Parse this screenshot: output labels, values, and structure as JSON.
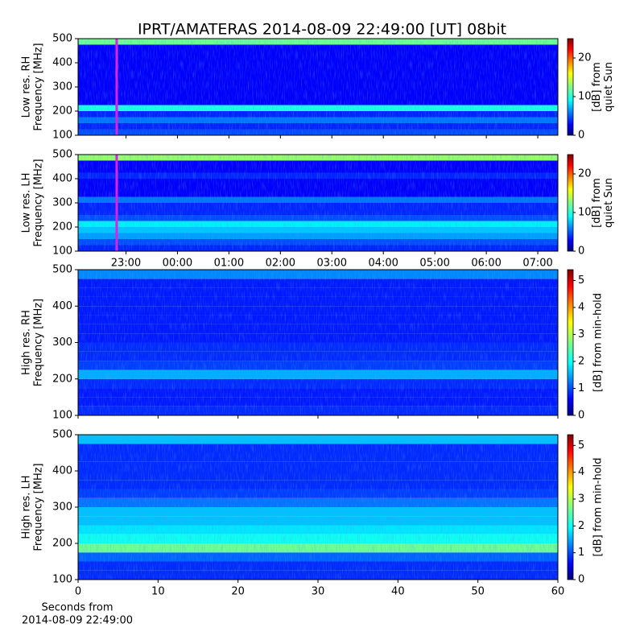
{
  "chart_data": [
    {
      "type": "heatmap",
      "title": "IPRT/AMATERAS 2014-08-09 22:49:00 [UT]   08bit",
      "y_label": [
        "Low res. RH",
        "Frequency [MHz]"
      ],
      "ylim": [
        100,
        500
      ],
      "yticks": [
        100,
        200,
        300,
        400,
        500
      ],
      "xlim": [
        22.07,
        31.39
      ],
      "xticks": [
        23,
        24,
        25,
        26,
        27,
        28,
        29,
        30,
        31
      ],
      "frequency_edges": [
        100,
        125,
        150,
        175,
        200,
        225,
        250,
        275,
        300,
        325,
        350,
        375,
        400,
        425,
        450,
        475,
        500
      ],
      "values": [
        5,
        4,
        6,
        4,
        10,
        3,
        3,
        3,
        3,
        3,
        3,
        3,
        3,
        3,
        3,
        12
      ],
      "clim": [
        0,
        25
      ],
      "cticks": [
        0,
        10,
        20
      ],
      "colorbar_label": [
        "[dB] from",
        "quiet Sun"
      ],
      "marker": {
        "x": 22.82,
        "color": "#e020e0"
      }
    },
    {
      "type": "heatmap",
      "y_label": [
        "Low res. LH",
        "Frequency [MHz]"
      ],
      "ylim": [
        100,
        500
      ],
      "yticks": [
        100,
        200,
        300,
        400,
        500
      ],
      "xlim": [
        22.07,
        31.39
      ],
      "xticks": [
        {
          "value": 23,
          "label": "23:00"
        },
        {
          "value": 24,
          "label": "00:00"
        },
        {
          "value": 25,
          "label": "01:00"
        },
        {
          "value": 26,
          "label": "02:00"
        },
        {
          "value": 27,
          "label": "03:00"
        },
        {
          "value": 28,
          "label": "04:00"
        },
        {
          "value": 29,
          "label": "05:00"
        },
        {
          "value": 30,
          "label": "06:00"
        },
        {
          "value": 31,
          "label": "07:00"
        }
      ],
      "frequency_edges": [
        100,
        125,
        150,
        175,
        200,
        225,
        250,
        275,
        300,
        325,
        350,
        375,
        400,
        425,
        450,
        475,
        500
      ],
      "values": [
        4,
        5,
        7,
        8,
        9,
        5,
        4,
        4,
        6,
        3,
        3,
        3,
        4,
        3,
        3,
        13
      ],
      "clim": [
        0,
        25
      ],
      "cticks": [
        0,
        10,
        20
      ],
      "colorbar_label": [
        "[dB] from",
        "quiet Sun"
      ],
      "marker": {
        "x": 22.82,
        "color": "#e020e0"
      }
    },
    {
      "type": "heatmap",
      "y_label": [
        "High res. RH",
        "Frequency [MHz]"
      ],
      "ylim": [
        100,
        500
      ],
      "yticks": [
        100,
        200,
        300,
        400,
        500
      ],
      "xlim": [
        0,
        60
      ],
      "xticks": [
        0,
        10,
        20,
        30,
        40,
        50,
        60
      ],
      "frequency_edges": [
        100,
        125,
        150,
        175,
        200,
        225,
        250,
        275,
        300,
        325,
        350,
        375,
        400,
        425,
        450,
        475,
        500
      ],
      "values": [
        0.9,
        0.8,
        0.8,
        0.9,
        1.6,
        1.0,
        0.9,
        0.9,
        0.8,
        0.8,
        0.8,
        0.8,
        0.8,
        0.8,
        0.8,
        1.4
      ],
      "clim": [
        0,
        5.4
      ],
      "cticks": [
        0,
        1,
        2,
        3,
        4,
        5
      ],
      "colorbar_label": [
        "[dB] from min-hold"
      ]
    },
    {
      "type": "heatmap",
      "y_label": [
        "High res. LH",
        "Frequency [MHz]"
      ],
      "ylim": [
        100,
        500
      ],
      "yticks": [
        100,
        200,
        300,
        400,
        500
      ],
      "xlim": [
        0,
        60
      ],
      "xticks": [
        0,
        10,
        20,
        30,
        40,
        50,
        60
      ],
      "x_label": [
        "Seconds from",
        "2014-08-09 22:49:00"
      ],
      "frequency_edges": [
        100,
        125,
        150,
        175,
        200,
        225,
        250,
        275,
        300,
        325,
        350,
        375,
        400,
        425,
        450,
        475,
        500
      ],
      "values": [
        0.9,
        0.9,
        1.2,
        2.6,
        2.1,
        1.9,
        1.7,
        1.7,
        1.3,
        1.0,
        0.9,
        0.9,
        0.9,
        0.9,
        0.9,
        1.7
      ],
      "clim": [
        0,
        5.4
      ],
      "cticks": [
        0,
        1,
        2,
        3,
        4,
        5
      ],
      "colorbar_label": [
        "[dB] from min-hold"
      ]
    }
  ]
}
